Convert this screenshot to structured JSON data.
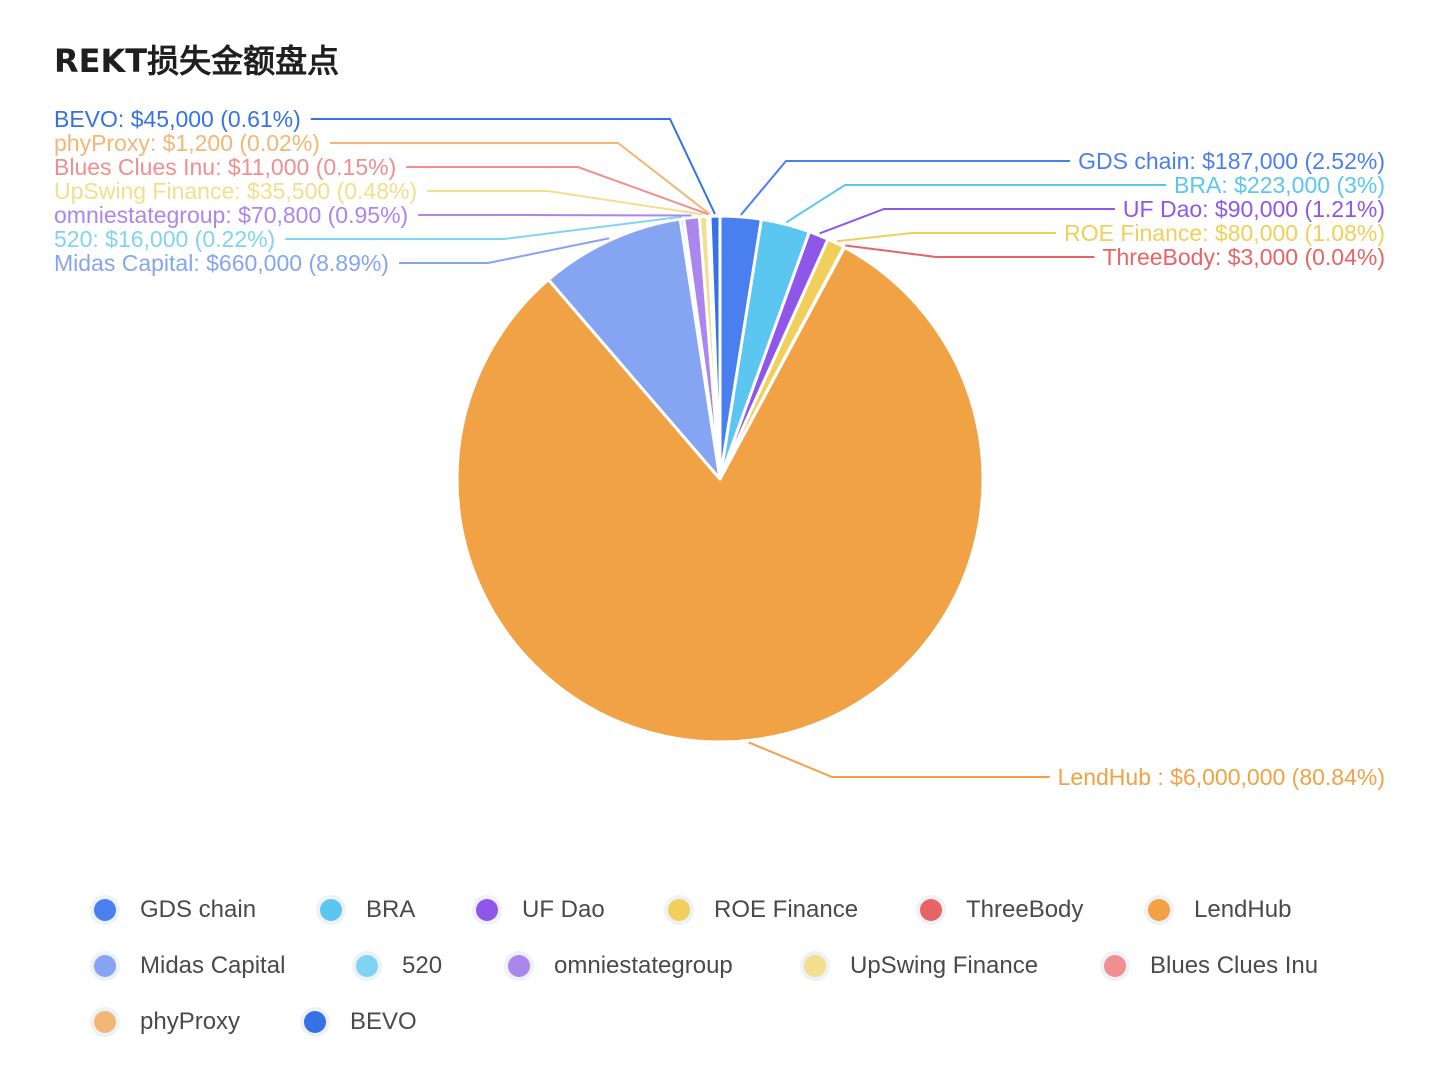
{
  "title": "REKT损失金额盘点",
  "chart_data": {
    "type": "pie",
    "title": "REKT损失金额盘点",
    "slices": [
      {
        "name": "GDS chain",
        "value": 187000,
        "label": "GDS chain: $187,000 (2.52%)",
        "color": "#4a7ff0"
      },
      {
        "name": "BRA",
        "value": 223000,
        "label": "BRA: $223,000 (3%)",
        "color": "#5bc7f0"
      },
      {
        "name": "UF Dao",
        "value": 90000,
        "label": "UF Dao: $90,000 (1.21%)",
        "color": "#8f56ea"
      },
      {
        "name": "ROE Finance",
        "value": 80000,
        "label": "ROE Finance: $80,000 (1.08%)",
        "color": "#f0cf5a"
      },
      {
        "name": "ThreeBody",
        "value": 3000,
        "label": "ThreeBody: $3,000 (0.04%)",
        "color": "#e86464"
      },
      {
        "name": "LendHub",
        "value": 6000000,
        "label": "LendHub : $6,000,000 (80.84%)",
        "color": "#f0a245"
      },
      {
        "name": "Midas Capital",
        "value": 660000,
        "label": "Midas Capital: $660,000 (8.89%)",
        "color": "#85a5f2"
      },
      {
        "name": "520",
        "value": 16000,
        "label": "520: $16,000 (0.22%)",
        "color": "#7fd4f2"
      },
      {
        "name": "omniestategroup",
        "value": 70800,
        "label": "omniestategroup: $70,800 (0.95%)",
        "color": "#ab86ec"
      },
      {
        "name": "UpSwing Finance",
        "value": 35500,
        "label": "UpSwing Finance: $35,500 (0.48%)",
        "color": "#f2de8c"
      },
      {
        "name": "Blues Clues Inu",
        "value": 11000,
        "label": "Blues Clues Inu: $11,000 (0.15%)",
        "color": "#ef8f8f"
      },
      {
        "name": "phyProxy",
        "value": 1200,
        "label": "phyProxy: $1,200 (0.02%)",
        "color": "#f3b775"
      },
      {
        "name": "BEVO",
        "value": 45000,
        "label": "BEVO: $45,000 (0.61%)",
        "color": "#3672e6"
      }
    ],
    "legend_placement": "bottom"
  }
}
